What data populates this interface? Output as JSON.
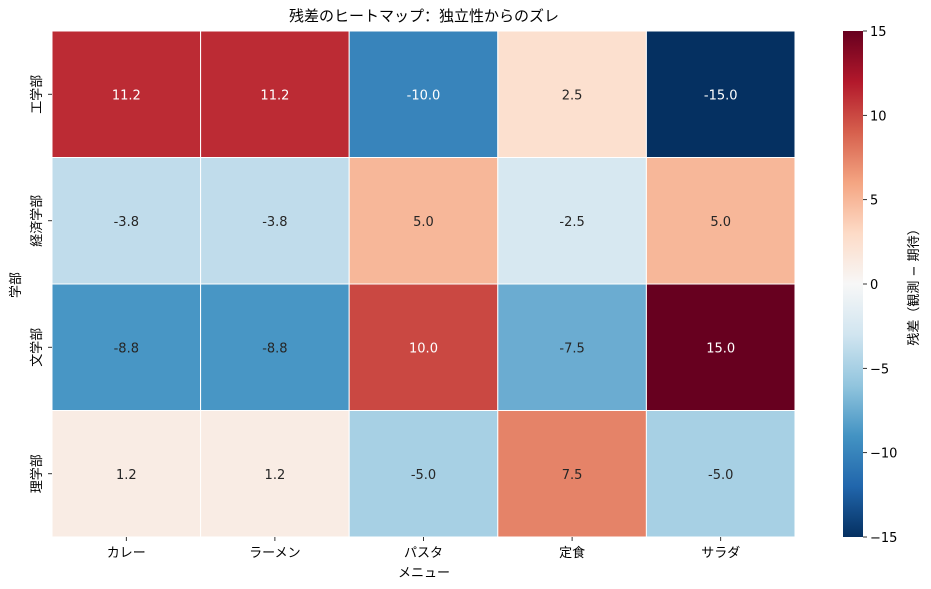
{
  "chart_data": {
    "type": "heatmap",
    "title": "残差のヒートマップ：独立性からのズレ",
    "xlabel": "メニュー",
    "ylabel": "学部",
    "x_categories": [
      "カレー",
      "ラーメン",
      "パスタ",
      "定食",
      "サラダ"
    ],
    "y_categories": [
      "工学部",
      "経済学部",
      "文学部",
      "理学部"
    ],
    "values": [
      [
        11.2,
        11.2,
        -10.0,
        2.5,
        -15.0
      ],
      [
        -3.8,
        -3.8,
        5.0,
        -2.5,
        5.0
      ],
      [
        -8.8,
        -8.8,
        10.0,
        -7.5,
        15.0
      ],
      [
        1.2,
        1.2,
        -5.0,
        7.5,
        -5.0
      ]
    ],
    "value_labels": [
      [
        "11.2",
        "11.2",
        "-10.0",
        "2.5",
        "-15.0"
      ],
      [
        "-3.8",
        "-3.8",
        "5.0",
        "-2.5",
        "5.0"
      ],
      [
        "-8.8",
        "-8.8",
        "10.0",
        "-7.5",
        "15.0"
      ],
      [
        "1.2",
        "1.2",
        "-5.0",
        "7.5",
        "-5.0"
      ]
    ],
    "colorbar": {
      "label": "残差（観測 − 期待）",
      "range": [
        -15,
        15
      ],
      "ticks": [
        15,
        10,
        5,
        0,
        -5,
        -10,
        -15
      ],
      "tick_labels": [
        "15",
        "10",
        "5",
        "0",
        "−5",
        "−10",
        "−15"
      ],
      "colormap": "RdBu_r"
    }
  }
}
